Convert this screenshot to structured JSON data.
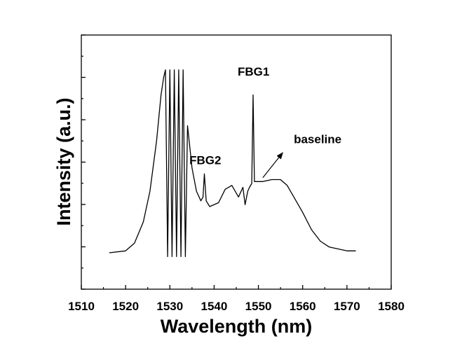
{
  "chart_data": {
    "type": "line",
    "title": "",
    "xlabel": "Wavelength (nm)",
    "ylabel": "Intensity (a.u.)",
    "xlim": [
      1510,
      1580
    ],
    "ylim": [
      0,
      1
    ],
    "x_ticks": [
      1510,
      1520,
      1530,
      1540,
      1550,
      1560,
      1570,
      1580
    ],
    "y_ticks_labeled": false,
    "grid": false,
    "legend": "none",
    "line_color": "#000000",
    "series": [
      {
        "x": [
          1516.3,
          1520,
          1522,
          1524,
          1525.5,
          1527,
          1528,
          1528.6,
          1529,
          1529.5,
          1530,
          1530.5,
          1531,
          1531.5,
          1532,
          1532.5,
          1533,
          1533.5,
          1534,
          1535,
          1536,
          1537,
          1537.5,
          1537.8,
          1538.2,
          1539,
          1541,
          1542.5,
          1544,
          1545.5,
          1546.5,
          1547,
          1547.6,
          1548,
          1548.5,
          1548.8,
          1549.1,
          1549.6,
          1551,
          1553,
          1555,
          1556.5,
          1558,
          1560,
          1562,
          1564,
          1566,
          1568,
          1570,
          1572
        ],
        "y": [
          0.04,
          0.05,
          0.09,
          0.2,
          0.36,
          0.62,
          0.86,
          0.95,
          0.99,
          0.02,
          0.99,
          0.02,
          0.99,
          0.02,
          0.99,
          0.02,
          0.99,
          0.02,
          0.7,
          0.48,
          0.36,
          0.31,
          0.33,
          0.45,
          0.31,
          0.28,
          0.3,
          0.37,
          0.39,
          0.33,
          0.38,
          0.29,
          0.36,
          0.38,
          0.4,
          0.86,
          0.41,
          0.41,
          0.41,
          0.42,
          0.42,
          0.39,
          0.33,
          0.25,
          0.16,
          0.1,
          0.07,
          0.06,
          0.05,
          0.05
        ]
      }
    ],
    "annotations": [
      {
        "text": "FBG1",
        "x": 1548.9,
        "y": 0.96
      },
      {
        "text": "FBG2",
        "x": 1538.0,
        "y": 0.5
      },
      {
        "text": "baseline",
        "x": 1558.0,
        "y": 0.61,
        "arrow_from": [
          1551.0,
          0.43
        ],
        "arrow_to": [
          1555.5,
          0.56
        ]
      }
    ]
  }
}
